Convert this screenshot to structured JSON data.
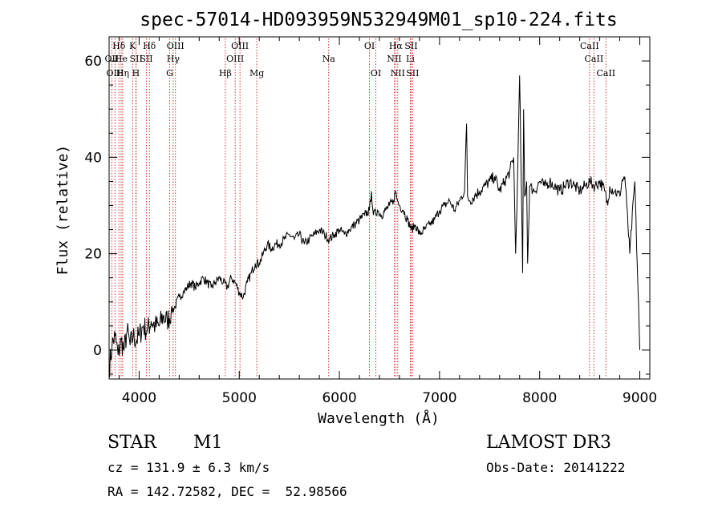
{
  "chart_data": {
    "type": "line",
    "title": "spec-57014-HD093959N532949M01_sp10-224.fits",
    "xlabel": "Wavelength (Å)",
    "ylabel": "Flux (relative)",
    "xlim": [
      3700,
      9100
    ],
    "ylim": [
      -6,
      65
    ],
    "xticks": [
      4000,
      5000,
      6000,
      7000,
      8000,
      9000
    ],
    "yticks": [
      0,
      20,
      40,
      60
    ],
    "grid": false,
    "line_color": "#000000",
    "marker_color": "#cc0000",
    "series": [
      {
        "x": [
          3700,
          3730,
          3760,
          3790,
          3820,
          3850,
          3880,
          3910,
          3940,
          3970,
          4000,
          4040,
          4080,
          4120,
          4160,
          4200,
          4240,
          4280,
          4320,
          4360,
          4400,
          4440,
          4480,
          4520,
          4560,
          4600,
          4640,
          4680,
          4720,
          4760,
          4800,
          4840,
          4880,
          4920,
          4960,
          5000,
          5040,
          5080,
          5120,
          5160,
          5200,
          5240,
          5280,
          5320,
          5360,
          5400,
          5450,
          5500,
          5550,
          5600,
          5650,
          5700,
          5750,
          5800,
          5850,
          5900,
          5950,
          6000,
          6050,
          6100,
          6150,
          6200,
          6250,
          6300,
          6320,
          6340,
          6380,
          6420,
          6460,
          6500,
          6540,
          6560,
          6580,
          6600,
          6640,
          6680,
          6720,
          6760,
          6800,
          6850,
          6900,
          6950,
          7000,
          7050,
          7100,
          7150,
          7200,
          7250,
          7270,
          7280,
          7300,
          7350,
          7400,
          7450,
          7500,
          7550,
          7600,
          7650,
          7700,
          7740,
          7760,
          7780,
          7800,
          7830,
          7840,
          7850,
          7870,
          7880,
          7900,
          7950,
          8000,
          8050,
          8100,
          8150,
          8200,
          8250,
          8300,
          8350,
          8400,
          8450,
          8500,
          8550,
          8600,
          8650,
          8680,
          8700,
          8750,
          8800,
          8820,
          8850,
          8870,
          8900,
          8950,
          9000
        ],
        "y": [
          -4,
          1,
          3,
          -1,
          2,
          0,
          4,
          1,
          3,
          2,
          3,
          5,
          4,
          6,
          5,
          5,
          7,
          6,
          8,
          9,
          11,
          12,
          13,
          14,
          13,
          14,
          15,
          14,
          13,
          14,
          15,
          14,
          13,
          15,
          14,
          12,
          11,
          14,
          16,
          18,
          18,
          20,
          22,
          21,
          22,
          22,
          23,
          24,
          23,
          24,
          22,
          23,
          24,
          25,
          24,
          23,
          24,
          25,
          24,
          25,
          26,
          27,
          28,
          29,
          33,
          28,
          29,
          28,
          29,
          30,
          31,
          33,
          31,
          30,
          29,
          27,
          25,
          26,
          24,
          25,
          26,
          27,
          29,
          30,
          31,
          29,
          31,
          33,
          47,
          32,
          31,
          32,
          33,
          34,
          35,
          36,
          33,
          35,
          37,
          40,
          20,
          36,
          57,
          16,
          50,
          32,
          35,
          18,
          34,
          33,
          35,
          34,
          35,
          34,
          33,
          34,
          35,
          34,
          33,
          34,
          35,
          34,
          35,
          33,
          30,
          34,
          33,
          32,
          35,
          36,
          30,
          20,
          35,
          0
        ]
      }
    ],
    "lines": [
      {
        "label": "Hδ",
        "wl": 3798,
        "row": 1
      },
      {
        "label": "OII",
        "wl": 3727,
        "row": 2
      },
      {
        "label": "OIII",
        "wl": 3760,
        "row": 3
      },
      {
        "label": "He",
        "wl": 3820,
        "row": 2
      },
      {
        "label": "Hη",
        "wl": 3835,
        "row": 3
      },
      {
        "label": "K",
        "wl": 3934,
        "row": 1
      },
      {
        "label": "SII",
        "wl": 3970,
        "row": 2
      },
      {
        "label": "H",
        "wl": 3968,
        "row": 3
      },
      {
        "label": "Hδ",
        "wl": 4102,
        "row": 1
      },
      {
        "label": "SII",
        "wl": 4072,
        "row": 2
      },
      {
        "label": "OIII",
        "wl": 4363,
        "row": 1
      },
      {
        "label": "Hγ",
        "wl": 4340,
        "row": 2
      },
      {
        "label": "G",
        "wl": 4305,
        "row": 3
      },
      {
        "label": "Hβ",
        "wl": 4861,
        "row": 3
      },
      {
        "label": "OIII",
        "wl": 4959,
        "row": 2
      },
      {
        "label": "OIII",
        "wl": 5007,
        "row": 1
      },
      {
        "label": "Mg",
        "wl": 5175,
        "row": 3
      },
      {
        "label": "Na",
        "wl": 5893,
        "row": 2
      },
      {
        "label": "OI",
        "wl": 6300,
        "row": 1
      },
      {
        "label": "OI",
        "wl": 6364,
        "row": 3
      },
      {
        "label": "Hα",
        "wl": 6563,
        "row": 1
      },
      {
        "label": "NII",
        "wl": 6548,
        "row": 2
      },
      {
        "label": "NII",
        "wl": 6583,
        "row": 3
      },
      {
        "label": "SII",
        "wl": 6716,
        "row": 1
      },
      {
        "label": "Li",
        "wl": 6708,
        "row": 2
      },
      {
        "label": "SII",
        "wl": 6731,
        "row": 3
      },
      {
        "label": "CaII",
        "wl": 8498,
        "row": 1
      },
      {
        "label": "CaII",
        "wl": 8542,
        "row": 2
      },
      {
        "label": "CaII",
        "wl": 8662,
        "row": 3
      }
    ]
  },
  "info": {
    "object_class": "STAR",
    "subclass": "M1",
    "survey": "LAMOST DR3",
    "redshift": "cz = 131.9 ± 6.3 km/s",
    "obs_date": "Obs-Date: 20141222",
    "coords": "RA = 142.72582, DEC =  52.98566"
  }
}
